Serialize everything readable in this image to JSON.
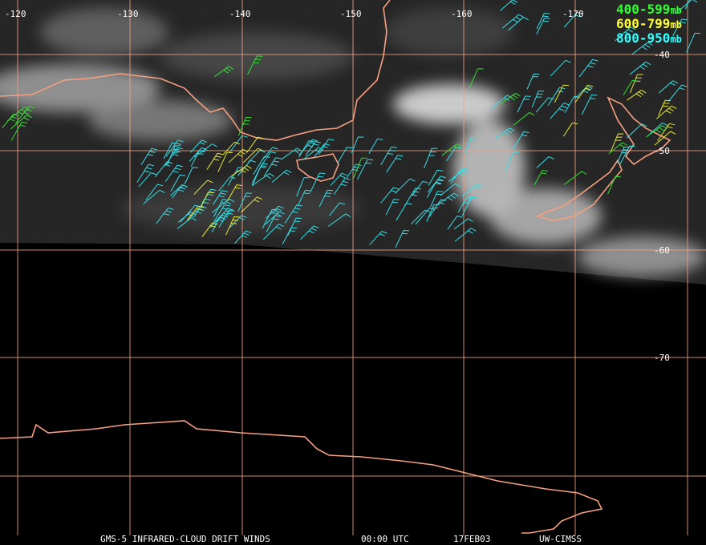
{
  "map": {
    "lon_labels": [
      "-120",
      "-130",
      "-140",
      "-150",
      "-160",
      "-170"
    ],
    "lat_labels": [
      "-40",
      "-50",
      "-60",
      "-70"
    ],
    "legend": [
      {
        "range": "400-599",
        "unit": "mb"
      },
      {
        "range": "600-799",
        "unit": "mb"
      },
      {
        "range": "800-950",
        "unit": "mb"
      }
    ],
    "footer": [
      "GMS-5 INFRARED-CLOUD DRIFT WINDS",
      "00:00 UTC",
      "17FEB03",
      "UW-CIMSS"
    ]
  }
}
